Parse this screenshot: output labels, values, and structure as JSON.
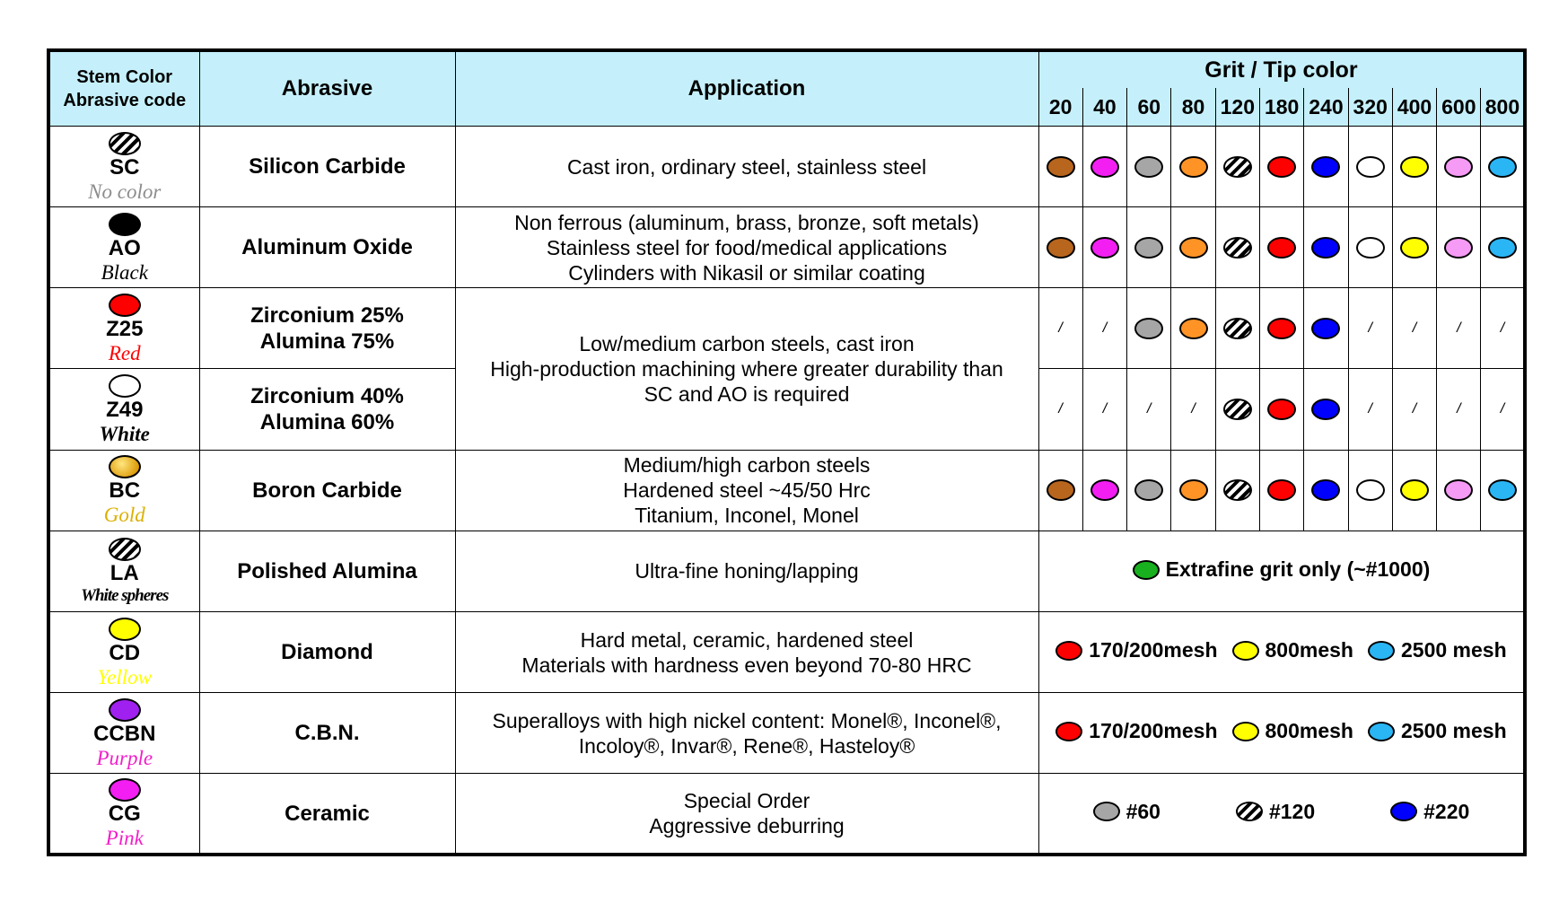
{
  "header": {
    "stem": "Stem Color",
    "code": "Abrasive code",
    "abrasive": "Abrasive",
    "application": "Application",
    "grit": "Grit / Tip color",
    "grit_values": [
      "20",
      "40",
      "60",
      "80",
      "120",
      "180",
      "240",
      "320",
      "400",
      "600",
      "800"
    ]
  },
  "colors": {
    "brown": "#b8651d",
    "magenta": "#f21ef2",
    "gray": "#a6a6a6",
    "orange": "#ff9326",
    "red": "#ff0000",
    "blue": "#0000ff",
    "white": "#ffffff",
    "yellow": "#ffff00",
    "pink": "#f59af5",
    "cyan": "#2ab5f5",
    "black": "#000000",
    "gold": "#f0b020",
    "purple": "#a020f0",
    "green": "#18b01e",
    "caption_gray": "#8c8c8c",
    "caption_gold": "#dbb000",
    "caption_pink": "#f21ec8"
  },
  "rows": [
    {
      "code": "SC",
      "color_name": "No color",
      "stem_icon": "hatched",
      "abrasive": [
        "Silicon Carbide"
      ],
      "application": [
        "Cast iron, ordinary steel, stainless steel"
      ],
      "grit_tips": [
        "brown",
        "magenta",
        "gray",
        "orange",
        "hatched",
        "red",
        "blue",
        "white",
        "yellow",
        "pink",
        "cyan"
      ]
    },
    {
      "code": "AO",
      "color_name": "Black",
      "stem_icon": "black",
      "abrasive": [
        "Aluminum Oxide"
      ],
      "application": [
        "Non ferrous (aluminum, brass, bronze, soft metals)",
        "Stainless steel for food/medical applications",
        "Cylinders with Nikasil or similar coating"
      ],
      "grit_tips": [
        "brown",
        "magenta",
        "gray",
        "orange",
        "hatched",
        "red",
        "blue",
        "white",
        "yellow",
        "pink",
        "cyan"
      ]
    },
    {
      "code": "Z25",
      "color_name": "Red",
      "stem_icon": "red",
      "abrasive": [
        "Zirconium 25%",
        "Alumina 75%"
      ],
      "application": [
        "Low/medium carbon steels, cast iron",
        "High-production machining where greater durability than",
        "SC and AO is required"
      ],
      "grit_tips": [
        "/",
        "/",
        "gray",
        "orange",
        "hatched",
        "red",
        "blue",
        "/",
        "/",
        "/",
        "/"
      ]
    },
    {
      "code": "Z49",
      "color_name": "White",
      "stem_icon": "white",
      "abrasive": [
        "Zirconium 40%",
        "Alumina 60%"
      ],
      "grit_tips": [
        "/",
        "/",
        "/",
        "/",
        "hatched",
        "red",
        "blue",
        "/",
        "/",
        "/",
        "/"
      ]
    },
    {
      "code": "BC",
      "color_name": "Gold",
      "stem_icon": "gold",
      "abrasive": [
        "Boron Carbide"
      ],
      "application": [
        "Medium/high carbon steels",
        "Hardened steel ~45/50 Hrc",
        "Titanium, Inconel, Monel"
      ],
      "grit_tips": [
        "brown",
        "magenta",
        "gray",
        "orange",
        "hatched",
        "red",
        "blue",
        "white",
        "yellow",
        "pink",
        "cyan"
      ]
    },
    {
      "code": "LA",
      "color_name": "White spheres",
      "stem_icon": "hatched",
      "abrasive": [
        "Polished Alumina"
      ],
      "application": [
        "Ultra-fine honing/lapping"
      ],
      "grit_note": "Extrafine grit only (~#1000)"
    },
    {
      "code": "CD",
      "color_name": "Yellow",
      "stem_icon": "yellow",
      "abrasive": [
        "Diamond"
      ],
      "application": [
        "Hard metal, ceramic, hardened steel",
        "Materials with hardness even beyond 70-80 HRC"
      ],
      "grit_groups": [
        {
          "color": "red",
          "label": "170/200mesh"
        },
        {
          "color": "yellow",
          "label": "800mesh"
        },
        {
          "color": "cyan",
          "label": "2500 mesh"
        }
      ]
    },
    {
      "code": "CCBN",
      "color_name": "Purple",
      "stem_icon": "purple",
      "abrasive": [
        "C.B.N."
      ],
      "application": [
        "Superalloys with high nickel content: Monel®, Inconel®,",
        "Incoloy®, Invar®, Rene®, Hasteloy®"
      ],
      "grit_groups": [
        {
          "color": "red",
          "label": "170/200mesh"
        },
        {
          "color": "yellow",
          "label": "800mesh"
        },
        {
          "color": "cyan",
          "label": "2500 mesh"
        }
      ]
    },
    {
      "code": "CG",
      "color_name": "Pink",
      "stem_icon": "magenta",
      "abrasive": [
        "Ceramic"
      ],
      "application": [
        "Special Order",
        "Aggressive deburring"
      ],
      "grit_groups": [
        {
          "color": "gray",
          "label": "#60"
        },
        {
          "color": "hatched",
          "label": "#120"
        },
        {
          "color": "blue",
          "label": "#220"
        }
      ]
    }
  ]
}
